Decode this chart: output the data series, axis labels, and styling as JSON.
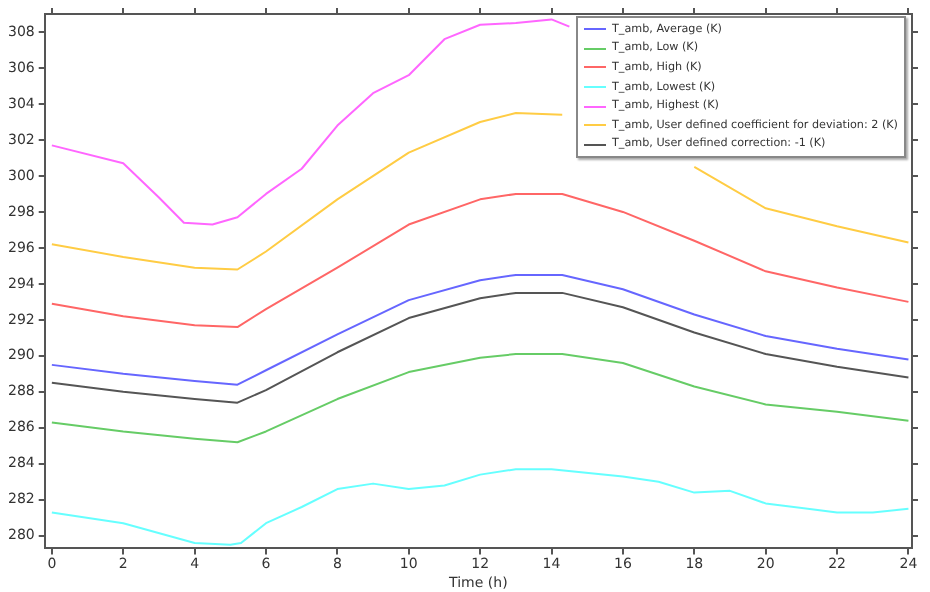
{
  "chart_data": {
    "type": "line",
    "xlabel": "Time (h)",
    "x": [
      0,
      2,
      4,
      5.2,
      6,
      8,
      10,
      12,
      13,
      14.3,
      16,
      18,
      20,
      22,
      24
    ],
    "xlim": [
      -0.2,
      24.1
    ],
    "xticks": [
      0,
      2,
      4,
      6,
      8,
      10,
      12,
      14,
      16,
      18,
      20,
      22,
      24
    ],
    "ylim": [
      279.3,
      309
    ],
    "yticks": [
      280,
      282,
      284,
      286,
      288,
      290,
      292,
      294,
      296,
      298,
      300,
      302,
      304,
      306,
      308
    ],
    "grid": false,
    "legend": "top right",
    "marker": "none",
    "line_style": "solid",
    "series": [
      {
        "name": "T_amb, Average (K)",
        "color": "#6666ff",
        "values": [
          289.5,
          289.0,
          288.6,
          288.4,
          289.2,
          291.2,
          293.1,
          294.2,
          294.5,
          294.5,
          293.7,
          292.3,
          291.1,
          290.4,
          289.8
        ]
      },
      {
        "name": "T_amb, Low (K)",
        "color": "#66cc66",
        "values": [
          286.3,
          285.8,
          285.4,
          285.2,
          285.8,
          287.6,
          289.1,
          289.9,
          290.1,
          290.1,
          289.6,
          288.3,
          287.3,
          286.9,
          286.4
        ]
      },
      {
        "name": "T_amb, High (K)",
        "color": "#ff6666",
        "values": [
          292.9,
          292.2,
          291.7,
          291.6,
          292.6,
          294.9,
          297.3,
          298.7,
          299.0,
          299.0,
          298.0,
          296.4,
          294.7,
          293.8,
          293.0
        ]
      },
      {
        "name": "T_amb, Lowest (K)",
        "color": "#66ffff",
        "x": [
          0,
          2,
          4,
          5,
          5.3,
          6,
          7,
          8,
          9,
          10,
          11,
          12,
          13,
          14,
          16,
          17,
          18,
          19,
          20,
          22,
          23,
          24
        ],
        "values": [
          281.3,
          280.7,
          279.6,
          279.5,
          279.6,
          280.7,
          281.6,
          282.6,
          282.9,
          282.6,
          282.8,
          283.4,
          283.7,
          283.7,
          283.3,
          283.0,
          282.4,
          282.5,
          281.8,
          281.3,
          281.3,
          281.5
        ]
      },
      {
        "name": "T_amb, Highest (K)",
        "color": "#ff66ff",
        "x": [
          0,
          2,
          3,
          3.7,
          4.5,
          5.2,
          6,
          7,
          8,
          9,
          10,
          11,
          12,
          13,
          14,
          14.5
        ],
        "values": [
          301.7,
          300.7,
          298.8,
          297.4,
          297.3,
          297.7,
          299.0,
          300.4,
          302.8,
          304.6,
          305.6,
          307.6,
          308.4,
          308.5,
          308.7,
          308.3
        ]
      },
      {
        "name": "T_amb, User defined coefficient for deviation: 2 (K)",
        "color": "#ffcc44",
        "values": [
          296.2,
          295.5,
          294.9,
          294.8,
          295.8,
          298.7,
          301.3,
          303.0,
          303.5,
          303.4,
          null,
          300.5,
          298.2,
          297.2,
          296.3
        ]
      },
      {
        "name": "T_amb, User defined correction: -1 (K)",
        "color": "#555555",
        "values": [
          288.5,
          288.0,
          287.6,
          287.4,
          288.1,
          290.2,
          292.1,
          293.2,
          293.5,
          293.5,
          292.7,
          291.3,
          290.1,
          289.4,
          288.8
        ]
      }
    ]
  }
}
